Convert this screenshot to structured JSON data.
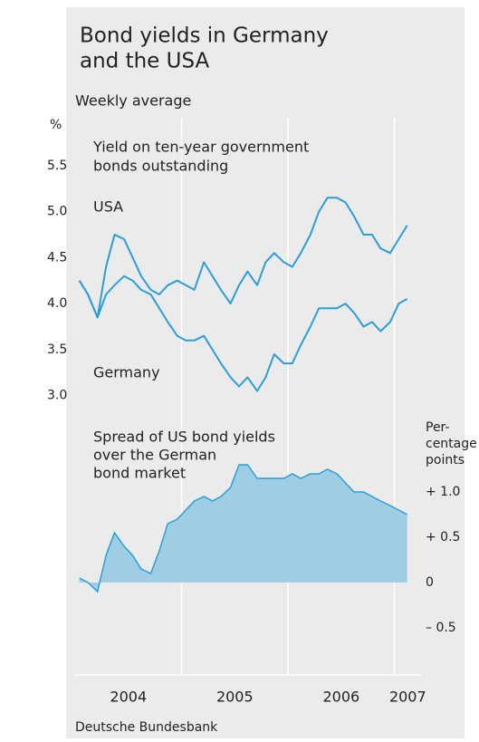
{
  "title": [
    "Bond yields in Germany",
    "and the USA"
  ],
  "subtitle": "Weekly average",
  "source": "Deutsche Bundesbank",
  "chart_data": [
    {
      "type": "line",
      "annotation": [
        "Yield on ten-year government",
        "bonds outstanding"
      ],
      "y_unit": "%",
      "xlim": [
        2004,
        2007.25
      ],
      "ylim": [
        2.8,
        6.0
      ],
      "yticks": [
        {
          "value": 3,
          "label": "3.0"
        },
        {
          "value": 3.5,
          "label": "3.5"
        },
        {
          "value": 4,
          "label": "4.0"
        },
        {
          "value": 4.5,
          "label": "4.5"
        },
        {
          "value": 5,
          "label": "5.0"
        },
        {
          "value": 5.5,
          "label": "5.5"
        }
      ],
      "x": [
        2004.04,
        2004.12,
        2004.21,
        2004.29,
        2004.37,
        2004.46,
        2004.54,
        2004.62,
        2004.71,
        2004.79,
        2004.87,
        2004.96,
        2005.04,
        2005.12,
        2005.21,
        2005.29,
        2005.37,
        2005.46,
        2005.54,
        2005.62,
        2005.71,
        2005.79,
        2005.87,
        2005.96,
        2006.04,
        2006.12,
        2006.21,
        2006.29,
        2006.37,
        2006.46,
        2006.54,
        2006.62,
        2006.71,
        2006.79,
        2006.87,
        2006.96,
        2007.04,
        2007.12
      ],
      "series": [
        {
          "name": "USA",
          "color": "#2a9fd6",
          "values": [
            4.25,
            4.1,
            3.85,
            4.4,
            4.75,
            4.7,
            4.5,
            4.3,
            4.15,
            4.1,
            4.2,
            4.25,
            4.2,
            4.15,
            4.45,
            4.3,
            4.15,
            4.0,
            4.2,
            4.35,
            4.2,
            4.45,
            4.55,
            4.45,
            4.4,
            4.55,
            4.75,
            5.0,
            5.15,
            5.15,
            5.1,
            4.95,
            4.75,
            4.75,
            4.6,
            4.55,
            4.7,
            4.85
          ]
        },
        {
          "name": "Germany",
          "color": "#2a9fd6",
          "values": [
            4.25,
            4.1,
            3.85,
            4.1,
            4.2,
            4.3,
            4.25,
            4.15,
            4.1,
            3.95,
            3.8,
            3.65,
            3.6,
            3.6,
            3.65,
            3.5,
            3.35,
            3.2,
            3.1,
            3.2,
            3.05,
            3.2,
            3.45,
            3.35,
            3.35,
            3.55,
            3.75,
            3.95,
            3.95,
            3.95,
            4.0,
            3.9,
            3.75,
            3.8,
            3.7,
            3.8,
            4.0,
            4.05
          ]
        }
      ]
    },
    {
      "type": "area",
      "annotation": [
        "Spread of US bond yields",
        "over the German",
        "bond market"
      ],
      "y_unit": [
        "Per-",
        "centage",
        "points"
      ],
      "xlim": [
        2004,
        2007.25
      ],
      "xticks": [
        2004,
        2005,
        2006,
        2007
      ],
      "ylim": [
        -1.0,
        1.85
      ],
      "yticks": [
        {
          "value": -0.5,
          "label": "– 0.5"
        },
        0,
        {
          "value": 0.5,
          "label": "+ 0.5"
        },
        {
          "value": 1,
          "label": "+ 1.0"
        }
      ],
      "color": "#9fcde3",
      "line_color": "#2a9fd6",
      "x": [
        2004.04,
        2004.12,
        2004.21,
        2004.29,
        2004.37,
        2004.46,
        2004.54,
        2004.62,
        2004.71,
        2004.79,
        2004.87,
        2004.96,
        2005.04,
        2005.12,
        2005.21,
        2005.29,
        2005.37,
        2005.46,
        2005.54,
        2005.62,
        2005.71,
        2005.79,
        2005.87,
        2005.96,
        2006.04,
        2006.12,
        2006.21,
        2006.29,
        2006.37,
        2006.46,
        2006.54,
        2006.62,
        2006.71,
        2006.79,
        2006.87,
        2006.96,
        2007.04,
        2007.12
      ],
      "values": [
        0.05,
        0,
        -0.1,
        0.3,
        0.55,
        0.4,
        0.3,
        0.15,
        0.1,
        0.35,
        0.65,
        0.7,
        0.8,
        0.9,
        0.95,
        0.9,
        0.95,
        1.05,
        1.3,
        1.3,
        1.15,
        1.15,
        1.15,
        1.15,
        1.2,
        1.15,
        1.2,
        1.2,
        1.25,
        1.2,
        1.1,
        1.0,
        1.0,
        0.95,
        0.9,
        0.85,
        0.8,
        0.75
      ]
    }
  ]
}
